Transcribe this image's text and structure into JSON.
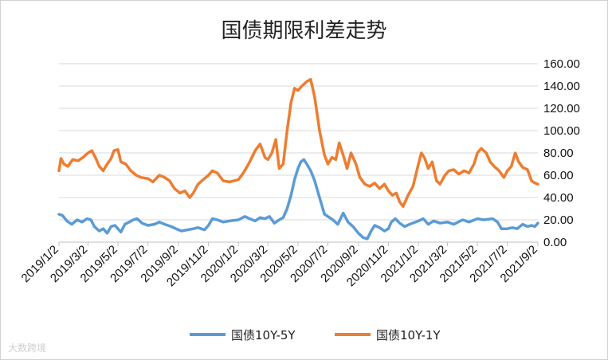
{
  "chart_data": {
    "type": "line",
    "title": "国债期限利差走势",
    "xlabel": "",
    "ylabel": "",
    "ylim": [
      0,
      160
    ],
    "yticks": [
      "0.00",
      "20.00",
      "40.00",
      "60.00",
      "80.00",
      "100.00",
      "120.00",
      "140.00",
      "160.00"
    ],
    "y_axis_position": "right",
    "grid": true,
    "legend_position": "bottom",
    "x_tick_labels": [
      "2019/1/2",
      "2019/3/2",
      "2019/5/2",
      "2019/7/2",
      "2019/9/2",
      "2019/11/2",
      "2020/1/2",
      "2020/3/2",
      "2020/5/2",
      "2020/7/2",
      "2020/9/2",
      "2020/11/2",
      "2021/1/2",
      "2021/3/2",
      "2021/5/2",
      "2021/7/2",
      "2021/9/2"
    ],
    "x_domain": [
      "2019/1/2",
      "2021/9/2"
    ],
    "series": [
      {
        "name": "国债10Y-5Y",
        "color": "#5b9bd5",
        "points": [
          [
            "2019/1/2",
            25
          ],
          [
            "2019/1/9",
            24
          ],
          [
            "2019/1/18",
            19
          ],
          [
            "2019/1/28",
            16
          ],
          [
            "2019/2/8",
            20
          ],
          [
            "2019/2/18",
            18
          ],
          [
            "2019/2/28",
            21
          ],
          [
            "2019/3/8",
            20
          ],
          [
            "2019/3/15",
            14
          ],
          [
            "2019/3/25",
            10
          ],
          [
            "2019/4/2",
            12
          ],
          [
            "2019/4/10",
            8
          ],
          [
            "2019/4/18",
            14
          ],
          [
            "2019/4/26",
            15
          ],
          [
            "2019/5/2",
            12
          ],
          [
            "2019/5/8",
            9
          ],
          [
            "2019/5/16",
            16
          ],
          [
            "2019/5/25",
            18
          ],
          [
            "2019/6/2",
            20
          ],
          [
            "2019/6/10",
            21
          ],
          [
            "2019/6/20",
            17
          ],
          [
            "2019/7/2",
            15
          ],
          [
            "2019/7/15",
            16
          ],
          [
            "2019/7/25",
            18
          ],
          [
            "2019/8/5",
            16
          ],
          [
            "2019/8/18",
            14
          ],
          [
            "2019/8/28",
            12
          ],
          [
            "2019/9/8",
            10
          ],
          [
            "2019/9/20",
            11
          ],
          [
            "2019/10/2",
            12
          ],
          [
            "2019/10/12",
            13
          ],
          [
            "2019/10/25",
            11
          ],
          [
            "2019/11/2",
            15
          ],
          [
            "2019/11/10",
            21
          ],
          [
            "2019/11/20",
            20
          ],
          [
            "2019/12/2",
            18
          ],
          [
            "2019/12/15",
            19
          ],
          [
            "2020/1/2",
            20
          ],
          [
            "2020/1/15",
            23
          ],
          [
            "2020/1/25",
            21
          ],
          [
            "2020/2/5",
            19
          ],
          [
            "2020/2/15",
            22
          ],
          [
            "2020/2/25",
            21
          ],
          [
            "2020/3/5",
            23
          ],
          [
            "2020/3/15",
            17
          ],
          [
            "2020/3/25",
            20
          ],
          [
            "2020/4/2",
            22
          ],
          [
            "2020/4/10",
            30
          ],
          [
            "2020/4/18",
            42
          ],
          [
            "2020/4/25",
            56
          ],
          [
            "2020/5/2",
            66
          ],
          [
            "2020/5/8",
            72
          ],
          [
            "2020/5/14",
            74
          ],
          [
            "2020/5/20",
            70
          ],
          [
            "2020/5/28",
            64
          ],
          [
            "2020/6/5",
            55
          ],
          [
            "2020/6/15",
            40
          ],
          [
            "2020/6/25",
            25
          ],
          [
            "2020/7/2",
            23
          ],
          [
            "2020/7/12",
            20
          ],
          [
            "2020/7/22",
            16
          ],
          [
            "2020/8/2",
            26
          ],
          [
            "2020/8/12",
            18
          ],
          [
            "2020/8/22",
            14
          ],
          [
            "2020/9/2",
            8
          ],
          [
            "2020/9/12",
            4
          ],
          [
            "2020/9/20",
            3
          ],
          [
            "2020/9/28",
            10
          ],
          [
            "2020/10/5",
            15
          ],
          [
            "2020/10/15",
            13
          ],
          [
            "2020/10/25",
            10
          ],
          [
            "2020/11/2",
            12
          ],
          [
            "2020/11/8",
            18
          ],
          [
            "2020/11/16",
            21
          ],
          [
            "2020/11/25",
            17
          ],
          [
            "2020/12/5",
            14
          ],
          [
            "2020/12/15",
            16
          ],
          [
            "2021/1/2",
            19
          ],
          [
            "2021/1/12",
            21
          ],
          [
            "2021/1/22",
            16
          ],
          [
            "2021/2/2",
            19
          ],
          [
            "2021/2/15",
            17
          ],
          [
            "2021/3/2",
            18
          ],
          [
            "2021/3/15",
            16
          ],
          [
            "2021/4/2",
            20
          ],
          [
            "2021/4/15",
            18
          ],
          [
            "2021/5/2",
            21
          ],
          [
            "2021/5/15",
            20
          ],
          [
            "2021/6/2",
            21
          ],
          [
            "2021/6/12",
            18
          ],
          [
            "2021/6/20",
            12
          ],
          [
            "2021/7/2",
            12
          ],
          [
            "2021/7/12",
            13
          ],
          [
            "2021/7/22",
            12
          ],
          [
            "2021/8/2",
            16
          ],
          [
            "2021/8/12",
            14
          ],
          [
            "2021/8/20",
            15
          ],
          [
            "2021/8/27",
            14
          ],
          [
            "2021/9/2",
            17
          ]
        ]
      },
      {
        "name": "国债10Y-1Y",
        "color": "#ed7d31",
        "points": [
          [
            "2019/1/2",
            64
          ],
          [
            "2019/1/6",
            75
          ],
          [
            "2019/1/12",
            70
          ],
          [
            "2019/1/20",
            68
          ],
          [
            "2019/1/30",
            74
          ],
          [
            "2019/2/10",
            73
          ],
          [
            "2019/2/20",
            76
          ],
          [
            "2019/3/2",
            80
          ],
          [
            "2019/3/10",
            82
          ],
          [
            "2019/3/18",
            75
          ],
          [
            "2019/3/25",
            68
          ],
          [
            "2019/4/2",
            64
          ],
          [
            "2019/4/10",
            70
          ],
          [
            "2019/4/18",
            75
          ],
          [
            "2019/4/24",
            82
          ],
          [
            "2019/5/2",
            83
          ],
          [
            "2019/5/8",
            72
          ],
          [
            "2019/5/18",
            70
          ],
          [
            "2019/5/28",
            64
          ],
          [
            "2019/6/8",
            60
          ],
          [
            "2019/6/18",
            58
          ],
          [
            "2019/7/2",
            57
          ],
          [
            "2019/7/12",
            54
          ],
          [
            "2019/7/25",
            60
          ],
          [
            "2019/8/5",
            58
          ],
          [
            "2019/8/15",
            55
          ],
          [
            "2019/8/25",
            48
          ],
          [
            "2019/9/5",
            44
          ],
          [
            "2019/9/15",
            46
          ],
          [
            "2019/9/25",
            40
          ],
          [
            "2019/10/2",
            44
          ],
          [
            "2019/10/12",
            52
          ],
          [
            "2019/10/25",
            57
          ],
          [
            "2019/11/2",
            60
          ],
          [
            "2019/11/10",
            64
          ],
          [
            "2019/11/20",
            62
          ],
          [
            "2019/12/2",
            55
          ],
          [
            "2019/12/15",
            54
          ],
          [
            "2020/1/2",
            56
          ],
          [
            "2020/1/12",
            62
          ],
          [
            "2020/1/25",
            72
          ],
          [
            "2020/2/5",
            82
          ],
          [
            "2020/2/15",
            88
          ],
          [
            "2020/2/25",
            76
          ],
          [
            "2020/3/2",
            74
          ],
          [
            "2020/3/10",
            80
          ],
          [
            "2020/3/18",
            92
          ],
          [
            "2020/3/25",
            66
          ],
          [
            "2020/4/2",
            70
          ],
          [
            "2020/4/10",
            100
          ],
          [
            "2020/4/18",
            125
          ],
          [
            "2020/4/25",
            138
          ],
          [
            "2020/5/2",
            136
          ],
          [
            "2020/5/10",
            140
          ],
          [
            "2020/5/20",
            144
          ],
          [
            "2020/5/28",
            146
          ],
          [
            "2020/6/5",
            130
          ],
          [
            "2020/6/15",
            100
          ],
          [
            "2020/6/25",
            78
          ],
          [
            "2020/7/2",
            70
          ],
          [
            "2020/7/10",
            76
          ],
          [
            "2020/7/18",
            74
          ],
          [
            "2020/7/25",
            89
          ],
          [
            "2020/8/2",
            78
          ],
          [
            "2020/8/10",
            66
          ],
          [
            "2020/8/18",
            80
          ],
          [
            "2020/8/28",
            70
          ],
          [
            "2020/9/5",
            58
          ],
          [
            "2020/9/15",
            52
          ],
          [
            "2020/9/25",
            50
          ],
          [
            "2020/10/5",
            53
          ],
          [
            "2020/10/15",
            48
          ],
          [
            "2020/10/25",
            52
          ],
          [
            "2020/11/2",
            46
          ],
          [
            "2020/11/10",
            42
          ],
          [
            "2020/11/18",
            44
          ],
          [
            "2020/11/25",
            36
          ],
          [
            "2020/12/2",
            32
          ],
          [
            "2020/12/12",
            42
          ],
          [
            "2020/12/22",
            50
          ],
          [
            "2021/1/2",
            70
          ],
          [
            "2021/1/8",
            80
          ],
          [
            "2021/1/15",
            75
          ],
          [
            "2021/1/22",
            66
          ],
          [
            "2021/1/30",
            72
          ],
          [
            "2021/2/8",
            55
          ],
          [
            "2021/2/15",
            52
          ],
          [
            "2021/2/25",
            60
          ],
          [
            "2021/3/5",
            64
          ],
          [
            "2021/3/15",
            65
          ],
          [
            "2021/3/25",
            61
          ],
          [
            "2021/4/5",
            64
          ],
          [
            "2021/4/15",
            62
          ],
          [
            "2021/4/25",
            70
          ],
          [
            "2021/5/2",
            80
          ],
          [
            "2021/5/10",
            84
          ],
          [
            "2021/5/20",
            80
          ],
          [
            "2021/5/28",
            72
          ],
          [
            "2021/6/5",
            68
          ],
          [
            "2021/6/15",
            64
          ],
          [
            "2021/6/25",
            58
          ],
          [
            "2021/7/2",
            64
          ],
          [
            "2021/7/10",
            68
          ],
          [
            "2021/7/18",
            80
          ],
          [
            "2021/7/25",
            72
          ],
          [
            "2021/8/2",
            67
          ],
          [
            "2021/8/12",
            65
          ],
          [
            "2021/8/20",
            55
          ],
          [
            "2021/8/27",
            53
          ],
          [
            "2021/9/2",
            52
          ]
        ]
      }
    ]
  },
  "watermark": "大数跨境"
}
